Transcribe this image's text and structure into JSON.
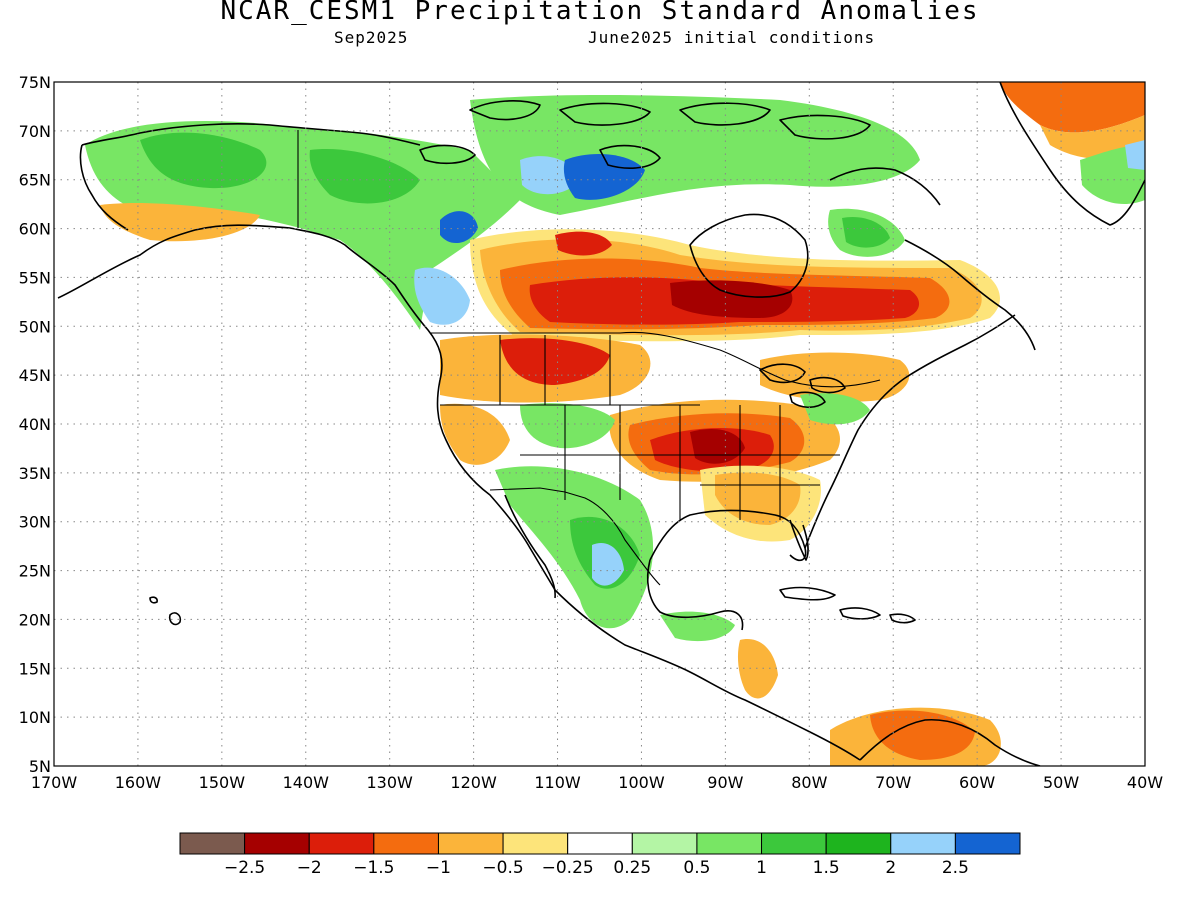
{
  "title": "NCAR_CESM1 Precipitation Standard Anomalies",
  "valid_month": "Sep2025",
  "initial_conditions": "June2025 initial conditions",
  "latitude_labels": [
    "75N",
    "70N",
    "65N",
    "60N",
    "55N",
    "50N",
    "45N",
    "40N",
    "35N",
    "30N",
    "25N",
    "20N",
    "15N",
    "10N",
    "5N"
  ],
  "longitude_labels": [
    "170W",
    "160W",
    "150W",
    "140W",
    "130W",
    "120W",
    "110W",
    "100W",
    "90W",
    "80W",
    "70W",
    "60W",
    "50W",
    "40W"
  ],
  "legend": {
    "colors": [
      "#7b5a4e",
      "#a50000",
      "#dc1e0a",
      "#f46c0f",
      "#fbb43a",
      "#fde47a",
      "#ffffff",
      "#b4f5a5",
      "#78e664",
      "#3cc83c",
      "#1eb41e",
      "#96d2fa",
      "#1464d2"
    ],
    "labels": [
      "−2.5",
      "−2",
      "−1.5",
      "−1",
      "−0.5",
      "−0.25",
      "0.25",
      "0.5",
      "1",
      "1.5",
      "2",
      "2.5"
    ]
  },
  "colors": {
    "land_outline": "#000000",
    "grid": "#888888"
  }
}
